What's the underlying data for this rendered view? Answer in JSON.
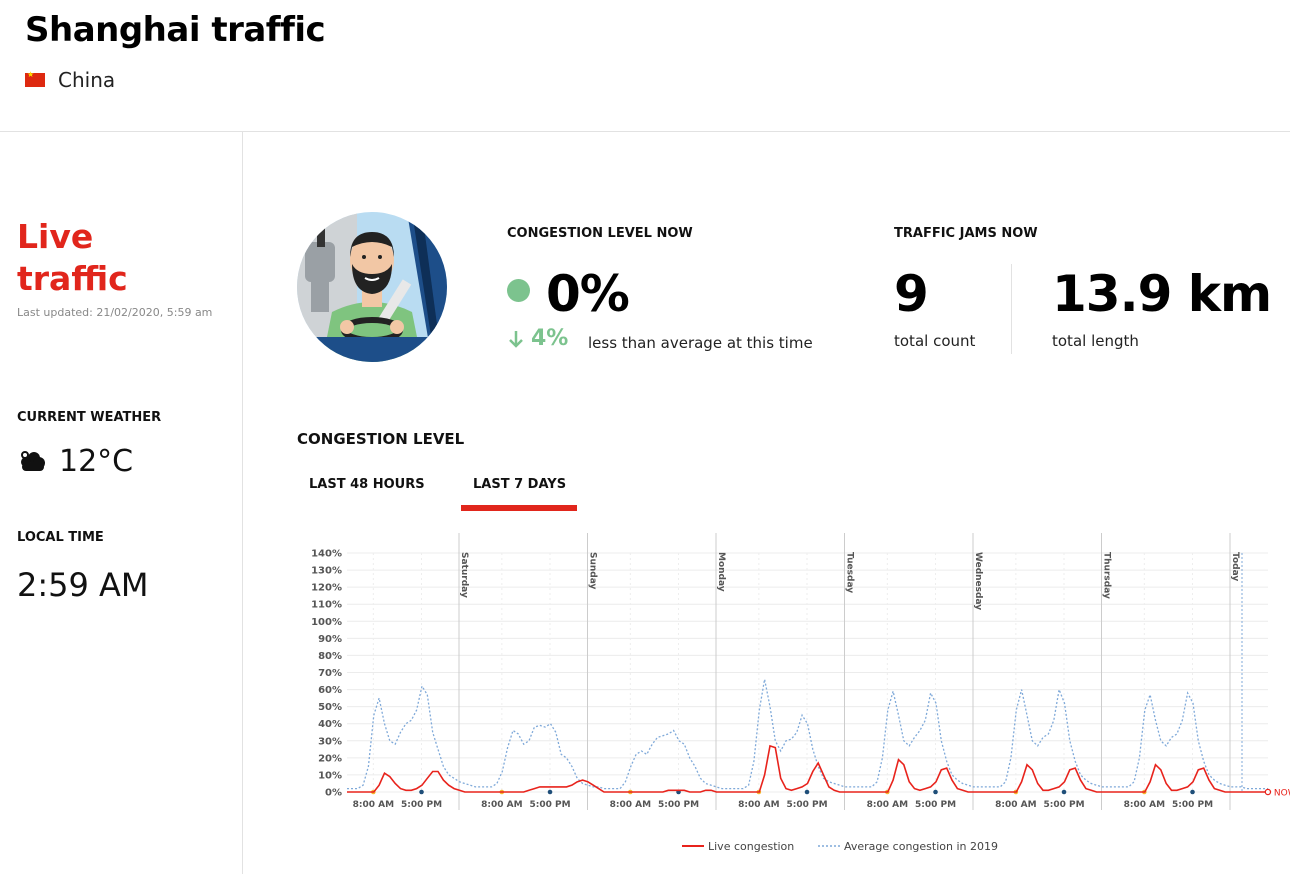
{
  "header": {
    "title": "Shanghai traffic",
    "country": "China",
    "flag_color": "#de2910"
  },
  "sidebar": {
    "live_line1": "Live",
    "live_line2": "traffic",
    "last_updated": "Last updated: 21/02/2020, 5:59 am",
    "weather_label": "CURRENT WEATHER",
    "weather_icon": "cloud-icon",
    "weather_temp": "12°C",
    "local_time_label": "LOCAL TIME",
    "local_time": "2:59 AM"
  },
  "congestion": {
    "label": "CONGESTION LEVEL NOW",
    "value": "0%",
    "status_color": "#7cc38e",
    "diff": "4%",
    "diff_icon": "arrow-down-icon",
    "note": "less than average at this time"
  },
  "jams": {
    "label": "TRAFFIC JAMS NOW",
    "count": "9",
    "count_label": "total count",
    "length": "13.9 km",
    "length_label": "total length"
  },
  "section": {
    "title": "CONGESTION LEVEL",
    "tabs": [
      "LAST 48 HOURS",
      "LAST 7 DAYS"
    ],
    "active_tab": "LAST 7 DAYS"
  },
  "colors": {
    "accent": "#e1261c",
    "live_line": "#e8231c",
    "avg_line": "#7fa9d9",
    "morning_marker": "#f5b82e",
    "evening_marker": "#1f4e79"
  },
  "chart_data": {
    "type": "line",
    "ylim": [
      0,
      140
    ],
    "yticks": [
      "0%",
      "10%",
      "20%",
      "30%",
      "40%",
      "50%",
      "60%",
      "70%",
      "80%",
      "90%",
      "100%",
      "110%",
      "120%",
      "130%",
      "140%"
    ],
    "day_labels": [
      "Saturday",
      "Sunday",
      "Monday",
      "Tuesday",
      "Wednesday",
      "Thursday",
      "Today"
    ],
    "hour_labels": [
      "8:00 AM",
      "5:00 PM"
    ],
    "now_label": "NOW",
    "legend": [
      "Live congestion",
      "Average congestion in 2019"
    ],
    "samples_per_day": 24,
    "series": [
      {
        "name": "Live congestion",
        "values": [
          0,
          0,
          0,
          0,
          0,
          0,
          4,
          11,
          9,
          5,
          2,
          1,
          1,
          2,
          4,
          8,
          12,
          12,
          7,
          4,
          2,
          1,
          0,
          0,
          0,
          0,
          0,
          0,
          0,
          0,
          0,
          0,
          0,
          0,
          1,
          2,
          3,
          3,
          3,
          3,
          3,
          3,
          4,
          6,
          7,
          6,
          4,
          2,
          0,
          0,
          0,
          0,
          0,
          0,
          0,
          0,
          0,
          0,
          0,
          0,
          1,
          1,
          1,
          1,
          0,
          0,
          0,
          1,
          1,
          0,
          0,
          0,
          0,
          0,
          0,
          0,
          0,
          0,
          10,
          27,
          26,
          8,
          2,
          1,
          2,
          3,
          5,
          12,
          17,
          10,
          3,
          1,
          0,
          0,
          0,
          0,
          0,
          0,
          0,
          0,
          0,
          0,
          7,
          19,
          16,
          6,
          2,
          1,
          2,
          3,
          6,
          13,
          14,
          7,
          2,
          1,
          0,
          0,
          0,
          0,
          0,
          0,
          0,
          0,
          0,
          0,
          6,
          16,
          13,
          5,
          1,
          1,
          2,
          3,
          6,
          13,
          14,
          7,
          2,
          1,
          0,
          0,
          0,
          0,
          0,
          0,
          0,
          0,
          0,
          0,
          6,
          16,
          13,
          5,
          1,
          1,
          2,
          3,
          6,
          13,
          14,
          7,
          2,
          1,
          0,
          0,
          0,
          0,
          0,
          0,
          0,
          0,
          0
        ]
      },
      {
        "name": "Average congestion in 2019",
        "values": [
          2,
          2,
          2,
          4,
          15,
          45,
          55,
          40,
          30,
          28,
          35,
          40,
          42,
          48,
          62,
          57,
          35,
          25,
          15,
          10,
          8,
          6,
          5,
          4,
          3,
          3,
          3,
          3,
          5,
          12,
          26,
          36,
          34,
          28,
          30,
          38,
          39,
          38,
          40,
          35,
          22,
          20,
          15,
          8,
          5,
          4,
          3,
          3,
          2,
          2,
          2,
          2,
          6,
          15,
          22,
          24,
          22,
          28,
          32,
          33,
          34,
          36,
          30,
          28,
          20,
          15,
          8,
          5,
          4,
          3,
          2,
          2,
          2,
          2,
          2,
          4,
          18,
          48,
          66,
          50,
          30,
          24,
          30,
          31,
          35,
          45,
          40,
          25,
          15,
          8,
          6,
          5,
          4,
          3,
          3,
          3,
          3,
          3,
          3,
          6,
          20,
          48,
          59,
          45,
          30,
          27,
          32,
          36,
          42,
          58,
          52,
          30,
          18,
          10,
          7,
          5,
          4,
          3,
          3,
          3,
          3,
          3,
          3,
          6,
          20,
          48,
          60,
          45,
          30,
          27,
          32,
          34,
          42,
          60,
          52,
          30,
          18,
          10,
          7,
          5,
          4,
          3,
          3,
          3,
          3,
          3,
          3,
          6,
          20,
          48,
          57,
          42,
          30,
          27,
          32,
          34,
          42,
          58,
          52,
          30,
          18,
          10,
          7,
          5,
          4,
          3,
          3,
          3,
          2,
          2,
          2,
          2,
          2
        ]
      }
    ],
    "grid": true,
    "legend_position": "bottom-center"
  }
}
